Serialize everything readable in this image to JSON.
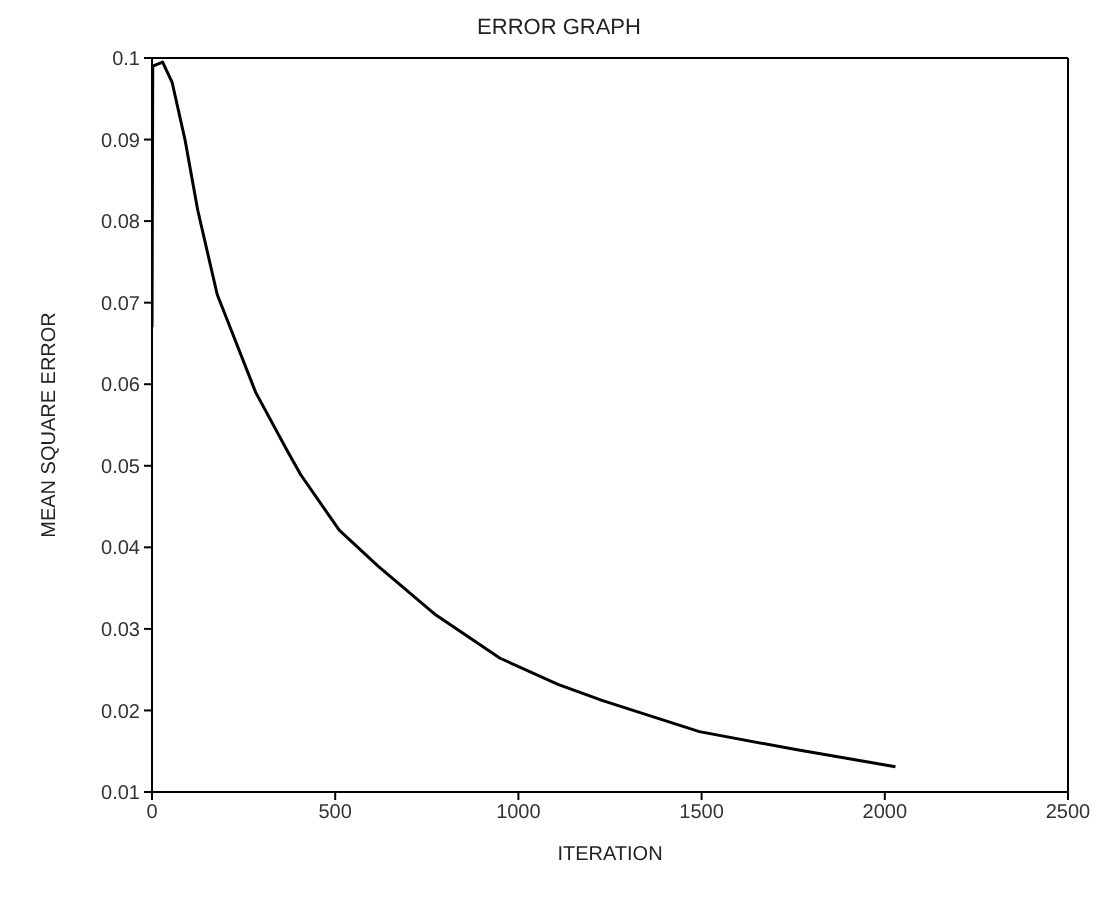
{
  "chart_data": {
    "type": "line",
    "title": "ERROR GRAPH",
    "xlabel": "ITERATION",
    "ylabel": "MEAN SQUARE ERROR",
    "x": [
      0,
      2,
      29,
      55,
      90,
      125,
      178,
      283,
      371,
      406,
      511,
      617,
      775,
      950,
      1108,
      1230,
      1494,
      1757,
      2029
    ],
    "series": [
      {
        "color": "#000000",
        "values": [
          0.067,
          0.099,
          0.0995,
          0.097,
          0.09,
          0.0813,
          0.071,
          0.059,
          0.0517,
          0.0489,
          0.0421,
          0.0377,
          0.0317,
          0.0264,
          0.0232,
          0.0212,
          0.0174,
          0.0152,
          0.0131
        ]
      }
    ],
    "xlim": [
      0,
      2500
    ],
    "xticks": [
      0,
      500,
      1000,
      1500,
      2000,
      2500
    ],
    "ylim": [
      0.01,
      0.1
    ],
    "yticks": [
      0.01,
      0.02,
      0.03,
      0.04,
      0.05,
      0.06,
      0.07,
      0.08,
      0.09,
      0.1
    ],
    "grid": false,
    "legend": false,
    "marker": "none",
    "line_style": "solid"
  }
}
